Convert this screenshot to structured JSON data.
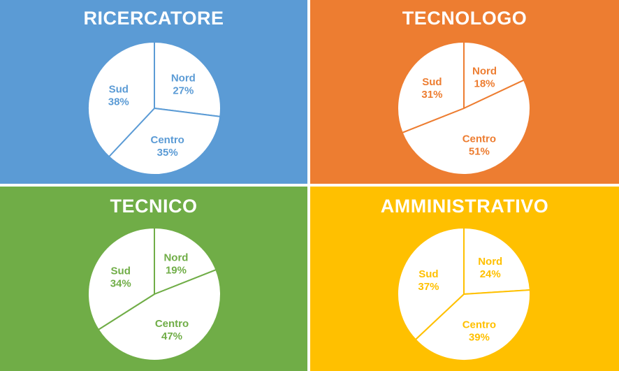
{
  "chart_data": [
    {
      "type": "pie",
      "title": "RICERCATORE",
      "color": "#5B9BD5",
      "slices": [
        {
          "label": "Nord",
          "value": 27,
          "value_label": "27%"
        },
        {
          "label": "Centro",
          "value": 35,
          "value_label": "35%"
        },
        {
          "label": "Sud",
          "value": 38,
          "value_label": "38%"
        }
      ]
    },
    {
      "type": "pie",
      "title": "TECNOLOGO",
      "color": "#ED7D31",
      "slices": [
        {
          "label": "Nord",
          "value": 18,
          "value_label": "18%"
        },
        {
          "label": "Centro",
          "value": 51,
          "value_label": "51%"
        },
        {
          "label": "Sud",
          "value": 31,
          "value_label": "31%"
        }
      ]
    },
    {
      "type": "pie",
      "title": "TECNICO",
      "color": "#70AD47",
      "slices": [
        {
          "label": "Nord",
          "value": 19,
          "value_label": "19%"
        },
        {
          "label": "Centro",
          "value": 47,
          "value_label": "47%"
        },
        {
          "label": "Sud",
          "value": 34,
          "value_label": "34%"
        }
      ]
    },
    {
      "type": "pie",
      "title": "AMMINISTRATIVO",
      "color": "#FFC000",
      "slices": [
        {
          "label": "Nord",
          "value": 24,
          "value_label": "24%"
        },
        {
          "label": "Centro",
          "value": 39,
          "value_label": "39%"
        },
        {
          "label": "Sud",
          "value": 37,
          "value_label": "37%"
        }
      ]
    }
  ]
}
